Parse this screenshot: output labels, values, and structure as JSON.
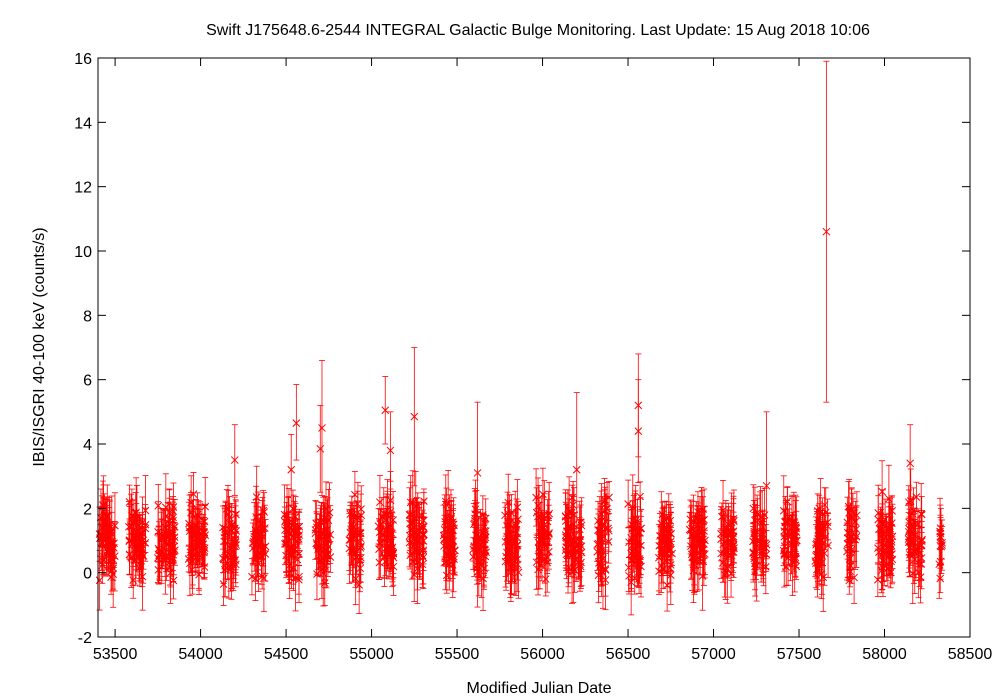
{
  "chart_data": {
    "type": "scatter",
    "title": "Swift J175648.6-2544   INTEGRAL Galactic Bulge Monitoring.  Last Update: 15 Aug 2018 10:06",
    "xlabel": "Modified Julian Date",
    "ylabel": "IBIS/ISGRI 40-100 keV (counts/s)",
    "xlim": [
      53400,
      58500
    ],
    "ylim": [
      -2,
      16
    ],
    "x_ticks": [
      53500,
      54000,
      54500,
      55000,
      55500,
      56000,
      56500,
      57000,
      57500,
      58000,
      58500
    ],
    "y_ticks": [
      -2,
      0,
      2,
      4,
      6,
      8,
      10,
      12,
      14,
      16
    ],
    "grid": false,
    "marker": "x",
    "series_color": "#ff0000",
    "visibility_windows": [
      {
        "start": 53400,
        "end": 53500
      },
      {
        "start": 53580,
        "end": 53680
      },
      {
        "start": 53750,
        "end": 53850
      },
      {
        "start": 53930,
        "end": 54030
      },
      {
        "start": 54130,
        "end": 54210
      },
      {
        "start": 54300,
        "end": 54380
      },
      {
        "start": 54490,
        "end": 54580
      },
      {
        "start": 54670,
        "end": 54760
      },
      {
        "start": 54870,
        "end": 54940
      },
      {
        "start": 55040,
        "end": 55130
      },
      {
        "start": 55220,
        "end": 55310
      },
      {
        "start": 55420,
        "end": 55490
      },
      {
        "start": 55590,
        "end": 55670
      },
      {
        "start": 55780,
        "end": 55860
      },
      {
        "start": 55960,
        "end": 56040
      },
      {
        "start": 56130,
        "end": 56230
      },
      {
        "start": 56320,
        "end": 56390
      },
      {
        "start": 56500,
        "end": 56580
      },
      {
        "start": 56680,
        "end": 56760
      },
      {
        "start": 56860,
        "end": 56950
      },
      {
        "start": 57040,
        "end": 57120
      },
      {
        "start": 57230,
        "end": 57310
      },
      {
        "start": 57410,
        "end": 57490
      },
      {
        "start": 57590,
        "end": 57670
      },
      {
        "start": 57780,
        "end": 57840
      },
      {
        "start": 57960,
        "end": 58050
      },
      {
        "start": 58140,
        "end": 58220
      },
      {
        "start": 58320,
        "end": 58340
      }
    ],
    "notable_points": [
      {
        "x": 54560,
        "y": 4.65,
        "y_low": 3.5,
        "y_high": 5.85
      },
      {
        "x": 54530,
        "y": 3.2,
        "y_low": 2.1,
        "y_high": 4.3
      },
      {
        "x": 54710,
        "y": 4.5,
        "y_low": 2.4,
        "y_high": 6.6
      },
      {
        "x": 54700,
        "y": 3.85,
        "y_low": 2.5,
        "y_high": 5.2
      },
      {
        "x": 55080,
        "y": 5.05,
        "y_low": 4.0,
        "y_high": 6.1
      },
      {
        "x": 55110,
        "y": 3.8,
        "y_low": 2.6,
        "y_high": 5.0
      },
      {
        "x": 55250,
        "y": 4.85,
        "y_low": 2.7,
        "y_high": 7.0
      },
      {
        "x": 55620,
        "y": 3.1,
        "y_low": 0.9,
        "y_high": 5.3
      },
      {
        "x": 56200,
        "y": 3.2,
        "y_low": 0.8,
        "y_high": 5.6
      },
      {
        "x": 56560,
        "y": 5.2,
        "y_low": 3.6,
        "y_high": 6.8
      },
      {
        "x": 56560,
        "y": 4.4,
        "y_low": 2.8,
        "y_high": 6.0
      },
      {
        "x": 57660,
        "y": 10.6,
        "y_low": 5.3,
        "y_high": 15.9
      },
      {
        "x": 57310,
        "y": 2.7,
        "y_low": 0.5,
        "y_high": 5.0
      },
      {
        "x": 54200,
        "y": 3.5,
        "y_low": 2.4,
        "y_high": 4.6
      },
      {
        "x": 58150,
        "y": 3.4,
        "y_low": 2.2,
        "y_high": 4.6
      },
      {
        "x": 58330,
        "y": 1.1,
        "y_low": 0.3,
        "y_high": 2.0
      }
    ]
  }
}
